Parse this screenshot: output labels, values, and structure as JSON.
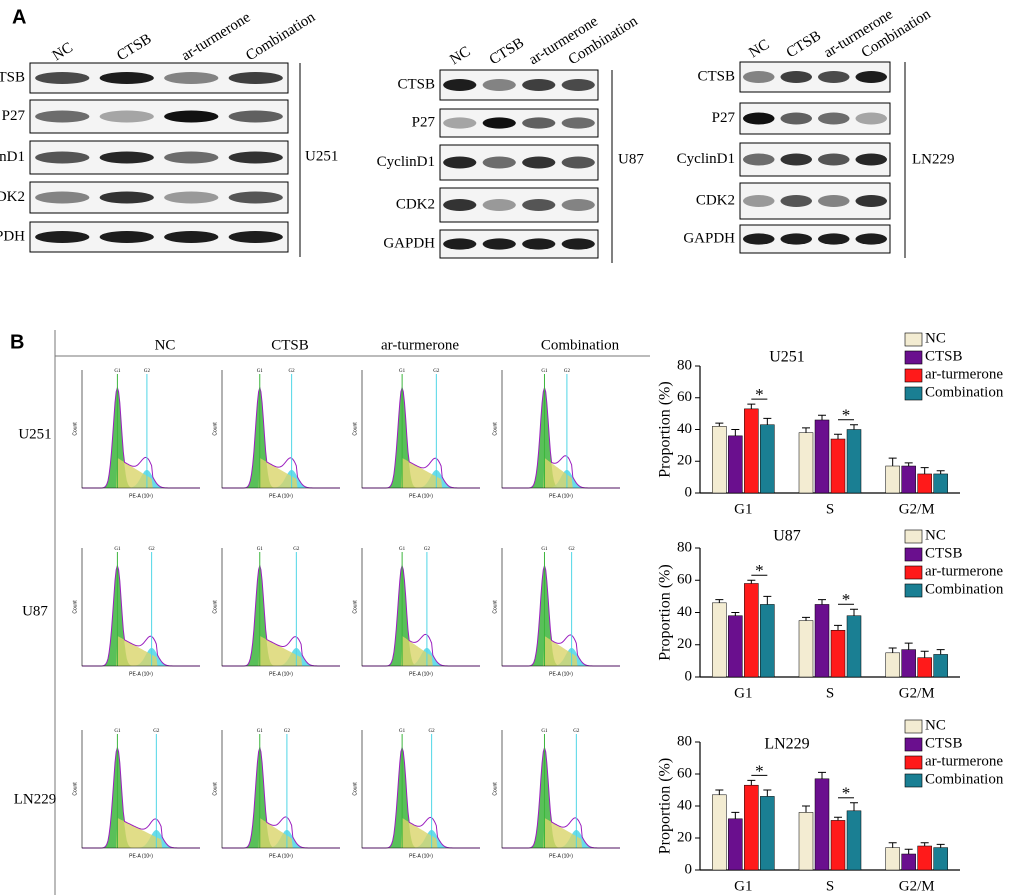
{
  "panel_a": {
    "label": "A",
    "lanes": [
      "NC",
      "CTSB",
      "ar-turmerone",
      "Combination"
    ],
    "proteins": [
      "CTSB",
      "P27",
      "CyclinD1",
      "CDK2",
      "GAPDH"
    ],
    "cell_lines": [
      "U251",
      "U87",
      "LN229"
    ]
  },
  "panel_b": {
    "label": "B",
    "gates": [
      "G1",
      "G2"
    ],
    "y_label": "Count",
    "x_label": "PE-A (10⁶)"
  },
  "chart_data": [
    {
      "type": "bar",
      "title": "U251",
      "ylabel": "Proportion (%)",
      "categories": [
        "G1",
        "S",
        "G2/M"
      ],
      "ylim": [
        0,
        80
      ],
      "yticks": [
        0,
        20,
        40,
        60,
        80
      ],
      "annotations": [
        "*",
        "*"
      ],
      "series": [
        {
          "name": "NC",
          "color": "#f3ecd2",
          "values": [
            42,
            38,
            17
          ],
          "errors": [
            2,
            3,
            5
          ]
        },
        {
          "name": "CTSB",
          "color": "#6a0f8e",
          "values": [
            36,
            46,
            17
          ],
          "errors": [
            4,
            3,
            2
          ]
        },
        {
          "name": "ar-turmerone",
          "color": "#ff1a1a",
          "values": [
            53,
            34,
            12
          ],
          "errors": [
            3,
            3,
            4
          ]
        },
        {
          "name": "Combination",
          "color": "#1a7f93",
          "values": [
            43,
            40,
            12
          ],
          "errors": [
            4,
            3,
            2
          ]
        }
      ]
    },
    {
      "type": "bar",
      "title": "U87",
      "ylabel": "Proportion (%)",
      "categories": [
        "G1",
        "S",
        "G2/M"
      ],
      "ylim": [
        0,
        80
      ],
      "yticks": [
        0,
        20,
        40,
        60,
        80
      ],
      "annotations": [
        "*",
        "*"
      ],
      "series": [
        {
          "name": "NC",
          "color": "#f3ecd2",
          "values": [
            46,
            35,
            15
          ],
          "errors": [
            2,
            2,
            3
          ]
        },
        {
          "name": "CTSB",
          "color": "#6a0f8e",
          "values": [
            38,
            45,
            17
          ],
          "errors": [
            2,
            3,
            4
          ]
        },
        {
          "name": "ar-turmerone",
          "color": "#ff1a1a",
          "values": [
            58,
            29,
            12
          ],
          "errors": [
            2,
            3,
            4
          ]
        },
        {
          "name": "Combination",
          "color": "#1a7f93",
          "values": [
            45,
            38,
            14
          ],
          "errors": [
            5,
            4,
            3
          ]
        }
      ]
    },
    {
      "type": "bar",
      "title": "LN229",
      "ylabel": "Proportion (%)",
      "categories": [
        "G1",
        "S",
        "G2/M"
      ],
      "ylim": [
        0,
        80
      ],
      "yticks": [
        0,
        20,
        40,
        60,
        80
      ],
      "annotations": [
        "*",
        "*"
      ],
      "series": [
        {
          "name": "NC",
          "color": "#f3ecd2",
          "values": [
            47,
            36,
            14
          ],
          "errors": [
            3,
            4,
            3
          ]
        },
        {
          "name": "CTSB",
          "color": "#6a0f8e",
          "values": [
            32,
            57,
            10
          ],
          "errors": [
            4,
            4,
            3
          ]
        },
        {
          "name": "ar-turmerone",
          "color": "#ff1a1a",
          "values": [
            53,
            31,
            15
          ],
          "errors": [
            3,
            2,
            2
          ]
        },
        {
          "name": "Combination",
          "color": "#1a7f93",
          "values": [
            46,
            37,
            14
          ],
          "errors": [
            4,
            5,
            2
          ]
        }
      ]
    }
  ]
}
